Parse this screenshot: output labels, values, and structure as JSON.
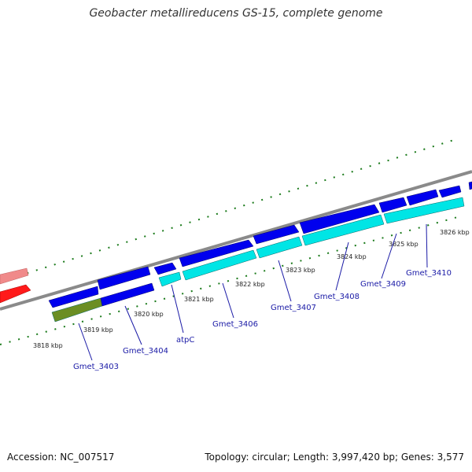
{
  "title": "Geobacter metallireducens GS-15, complete genome",
  "footer": {
    "accession": "Accession: NC_007517",
    "summary": "Topology: circular; Length: 3,997,420 bp; Genes: 3,577"
  },
  "colors": {
    "background": "#ffffff",
    "forward_gene": "#0000ee",
    "reverse_gene": "#00e5e5",
    "rna_gene": "#6b8e23",
    "highlight_red": "#ff1a1a",
    "highlight_pink": "#f08a8a",
    "backbone": "#8a8a8a",
    "tick": "#1a7a1a",
    "label_text": "#1a1aa6"
  },
  "scale_ticks": [
    {
      "label": "3818 kbp"
    },
    {
      "label": "3819 kbp"
    },
    {
      "label": "3820 kbp"
    },
    {
      "label": "3821 kbp"
    },
    {
      "label": "3822 kbp"
    },
    {
      "label": "3823 kbp"
    },
    {
      "label": "3824 kbp"
    },
    {
      "label": "3825 kbp"
    },
    {
      "label": "3826 kbp"
    }
  ],
  "gene_labels": [
    {
      "name": "Gmet_3403"
    },
    {
      "name": "Gmet_3404"
    },
    {
      "name": "atpC"
    },
    {
      "name": "Gmet_3406"
    },
    {
      "name": "Gmet_3407"
    },
    {
      "name": "Gmet_3408"
    },
    {
      "name": "Gmet_3409"
    },
    {
      "name": "Gmet_3410"
    }
  ]
}
